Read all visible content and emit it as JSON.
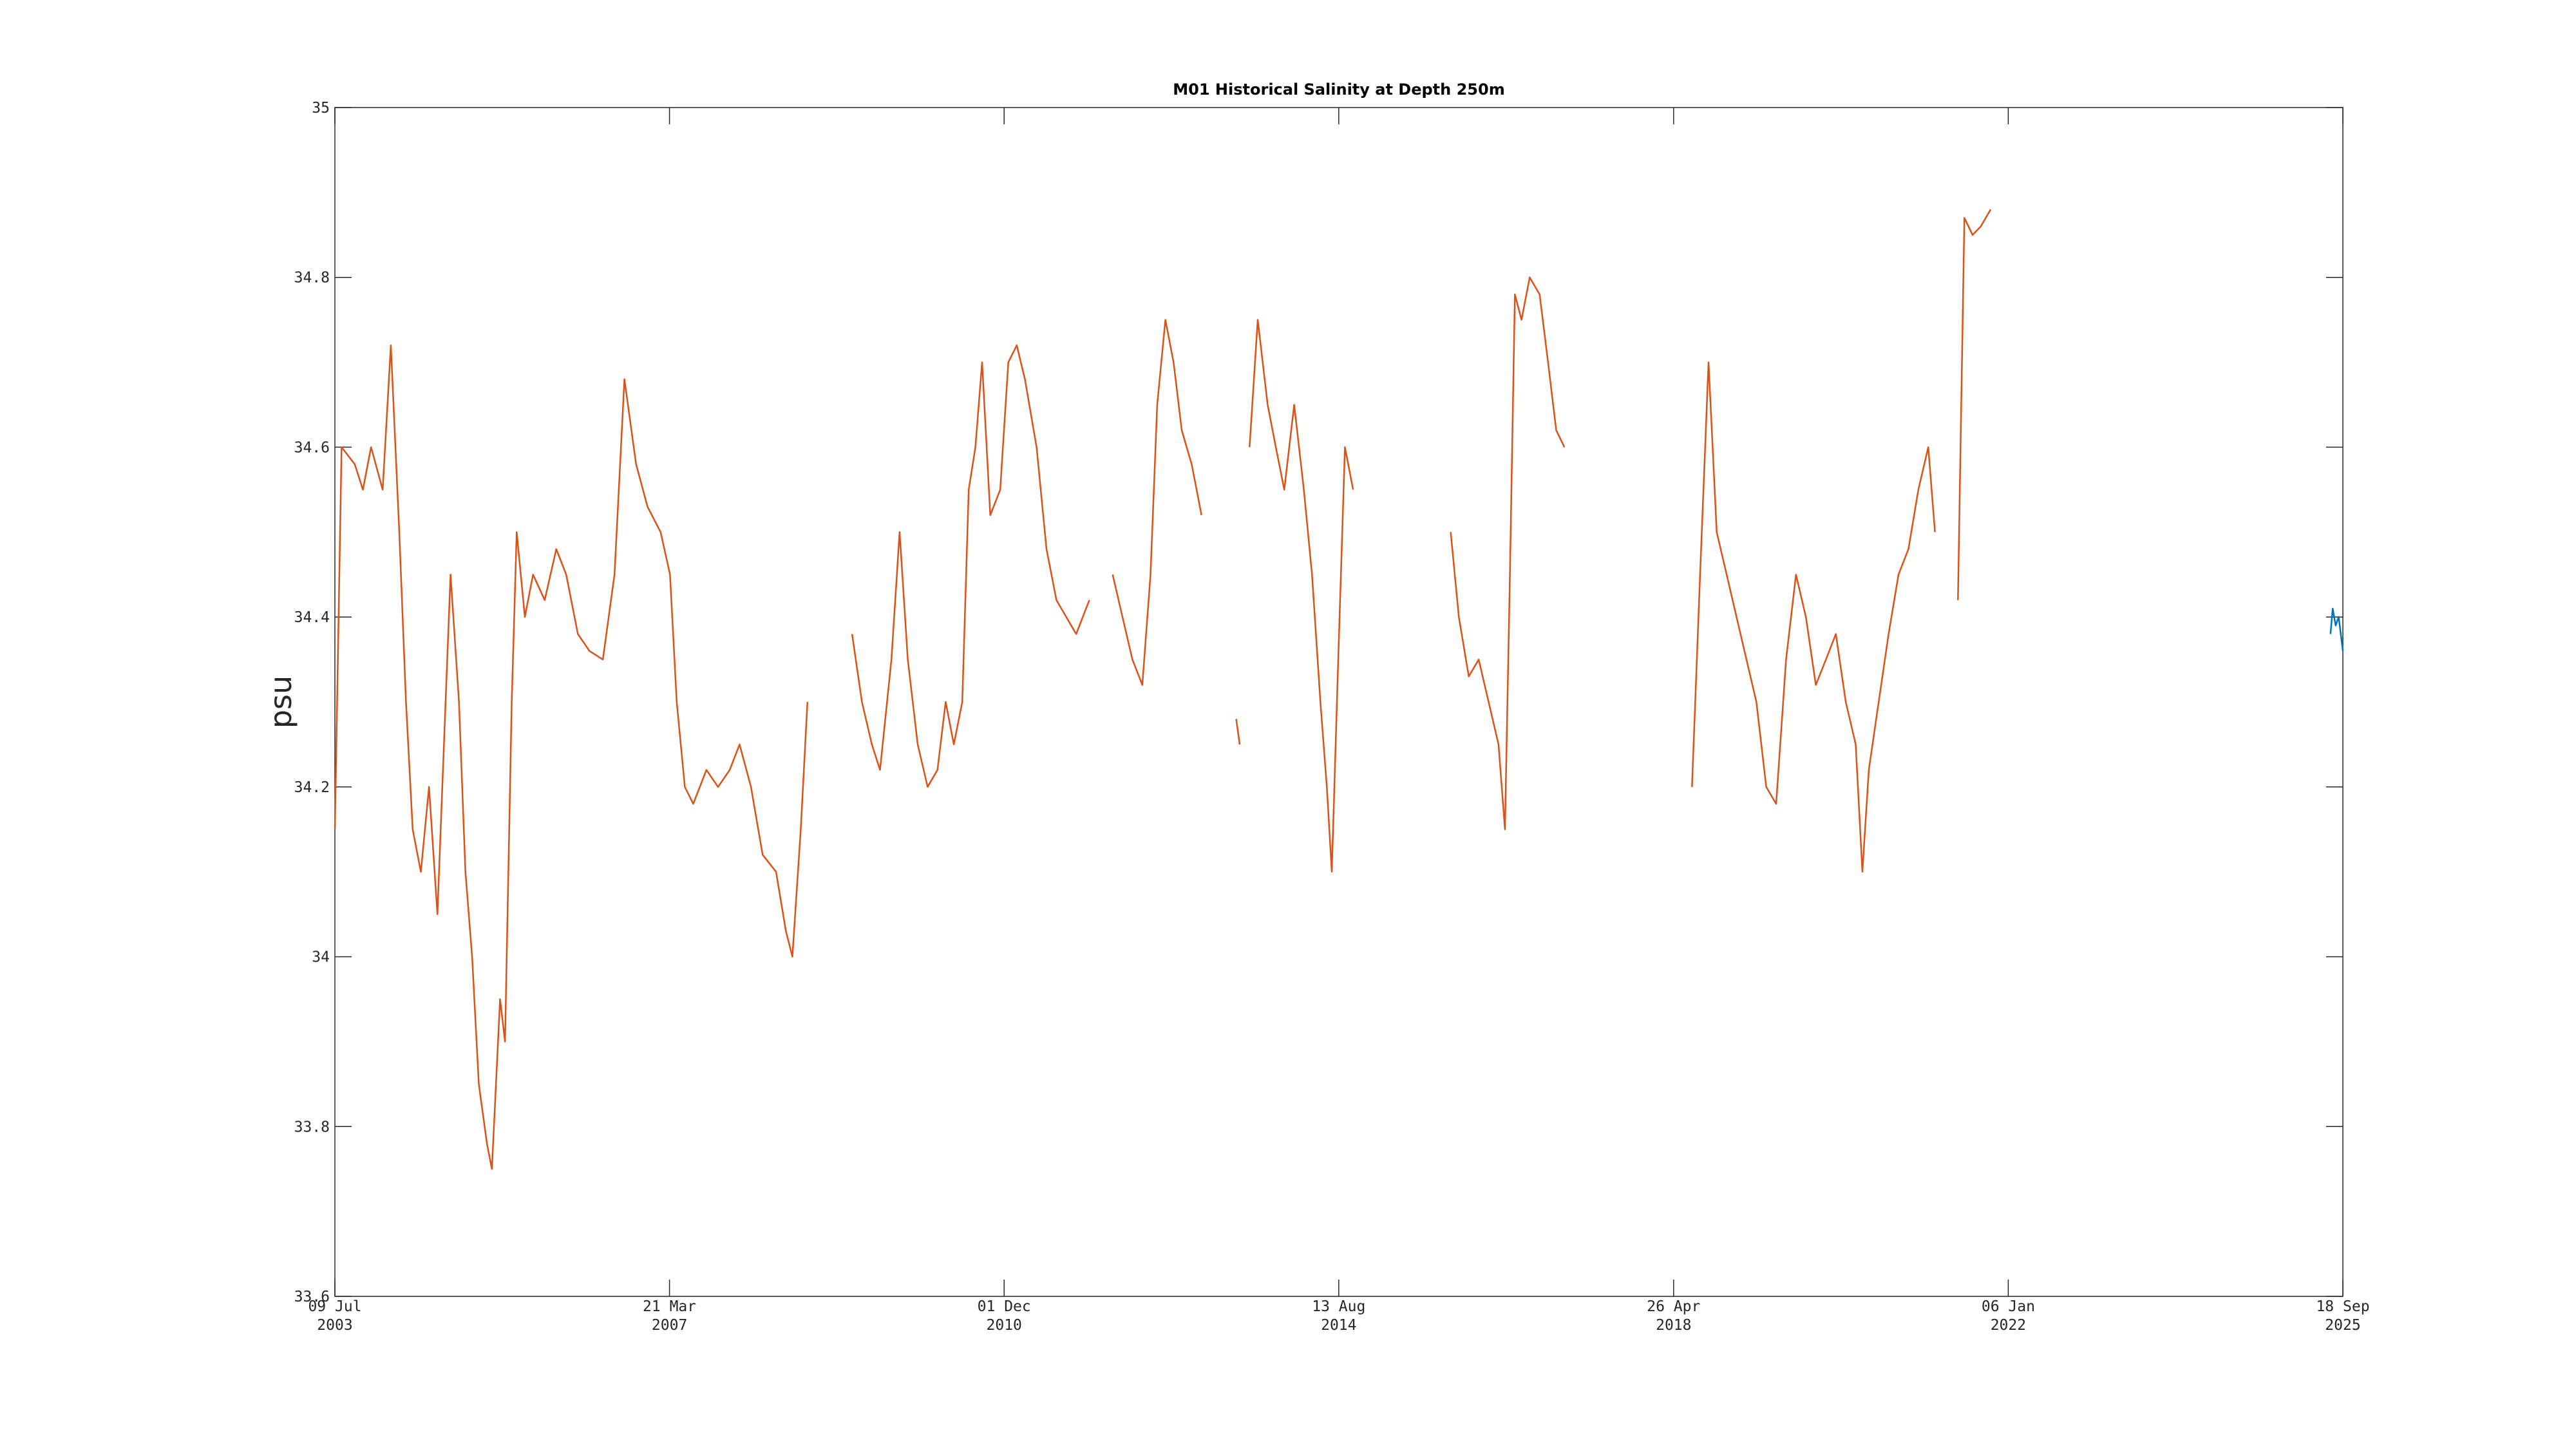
{
  "chart_data": {
    "type": "line",
    "title": "M01 Historical Salinity at Depth 250m",
    "y_label": "psu",
    "xlim": [
      "2003-07-09",
      "2025-09-18"
    ],
    "xticks": [
      {
        "value": "2003-07-09",
        "label": [
          "09 Jul",
          "2003"
        ]
      },
      {
        "value": "2007-03-21",
        "label": [
          "21 Mar",
          "2007"
        ]
      },
      {
        "value": "2010-12-01",
        "label": [
          "01 Dec",
          "2010"
        ]
      },
      {
        "value": "2014-08-13",
        "label": [
          "13 Aug",
          "2014"
        ]
      },
      {
        "value": "2018-04-26",
        "label": [
          "26 Apr",
          "2018"
        ]
      },
      {
        "value": "2022-01-06",
        "label": [
          "06 Jan",
          "2022"
        ]
      },
      {
        "value": "2025-09-18",
        "label": [
          "18 Sep",
          "2025"
        ]
      }
    ],
    "ylim": [
      33.6,
      35
    ],
    "yticks": [
      33.6,
      33.8,
      34,
      34.2,
      34.4,
      34.6,
      34.8,
      35
    ],
    "grid": false,
    "series": [
      {
        "color": "#d95319",
        "x": [
          "2003-07-09",
          "2003-08-05",
          "2003-09-27",
          "2003-10-30",
          "2003-12-02",
          "2004-01-18",
          "2004-02-20",
          "2004-03-25",
          "2004-04-21",
          "2004-05-18",
          "2004-06-20",
          "2004-07-23",
          "2004-08-26",
          "2004-09-28",
          "2004-10-18",
          "2004-11-21",
          "2004-12-17",
          "2005-01-13",
          "2005-02-09",
          "2005-03-14",
          "2005-04-03",
          "2005-05-06",
          "2005-05-26",
          "2005-06-22",
          "2005-07-12",
          "2005-08-14",
          "2005-09-16",
          "2005-11-02",
          "2005-12-19",
          "2006-01-28",
          "2006-03-16",
          "2006-05-02",
          "2006-06-25",
          "2006-08-11",
          "2006-09-20",
          "2006-11-06",
          "2006-12-22",
          "2007-02-13",
          "2007-03-23",
          "2007-04-19",
          "2007-05-22",
          "2007-06-25",
          "2007-08-17",
          "2007-10-03",
          "2007-11-19",
          "2007-12-29",
          "2008-02-13",
          "2008-03-31",
          "2008-05-24",
          "2008-07-03",
          "2008-07-29",
          "2008-09-01",
          "2008-09-28",
          "2009-01-01",
          "2009-03-27",
          "2009-05-06",
          "2009-06-15",
          "2009-07-18",
          "2009-09-02",
          "2009-10-05",
          "2009-11-07",
          "2009-12-17",
          "2010-01-26",
          "2010-03-07",
          "2010-04-09",
          "2010-05-12",
          "2010-06-15",
          "2010-07-11",
          "2010-08-07",
          "2010-09-03",
          "2010-10-06",
          "2010-11-15",
          "2010-12-18",
          "2011-01-21",
          "2011-02-23",
          "2011-04-11",
          "2011-05-21",
          "2011-06-30",
          "2011-08-09",
          "2011-09-18",
          "2011-11-10",
          "2012-01-01",
          "2012-02-12",
          "2012-03-23",
          "2012-05-02",
          "2012-06-11",
          "2012-07-14",
          "2012-08-10",
          "2012-09-12",
          "2012-10-15",
          "2012-11-17",
          "2012-12-27",
          "2013-02-05",
          "2013-03-15",
          "2013-06-25",
          "2013-07-09",
          "2013-07-20",
          "2013-08-18",
          "2013-09-20",
          "2013-10-30",
          "2013-12-02",
          "2014-01-05",
          "2014-02-14",
          "2014-03-25",
          "2014-04-27",
          "2014-05-31",
          "2014-06-26",
          "2014-07-16",
          "2014-08-11",
          "2014-09-07",
          "2014-10-10",
          "2015-06-01",
          "2015-11-08",
          "2015-12-11",
          "2016-01-20",
          "2016-02-29",
          "2016-04-09",
          "2016-05-19",
          "2016-06-14",
          "2016-07-04",
          "2016-07-24",
          "2016-08-20",
          "2016-09-22",
          "2016-11-01",
          "2016-12-05",
          "2017-01-07",
          "2017-02-09",
          "2017-06-01",
          "2018-07-09",
          "2018-08-11",
          "2018-09-14",
          "2018-10-17",
          "2018-11-26",
          "2019-01-05",
          "2019-02-14",
          "2019-03-26",
          "2019-05-05",
          "2019-06-14",
          "2019-07-24",
          "2019-09-02",
          "2019-10-12",
          "2019-11-21",
          "2020-01-01",
          "2020-02-10",
          "2020-03-21",
          "2020-04-30",
          "2020-05-27",
          "2020-06-22",
          "2020-08-01",
          "2020-09-10",
          "2020-10-20",
          "2020-11-29",
          "2021-01-08",
          "2021-02-17",
          "2021-03-16",
          "2021-04-15",
          "2021-06-17",
          "2021-07-13",
          "2021-08-15",
          "2021-09-17",
          "2021-10-27"
        ],
        "values": [
          34.15,
          34.6,
          34.58,
          34.55,
          34.6,
          34.55,
          34.72,
          34.5,
          34.3,
          34.15,
          34.1,
          34.2,
          34.05,
          34.3,
          34.45,
          34.3,
          34.1,
          34.0,
          33.85,
          33.78,
          33.75,
          33.95,
          33.9,
          34.3,
          34.5,
          34.4,
          34.45,
          34.42,
          34.48,
          34.45,
          34.38,
          34.36,
          34.35,
          34.45,
          34.68,
          34.58,
          34.53,
          34.5,
          34.45,
          34.3,
          34.2,
          34.18,
          34.22,
          34.2,
          34.22,
          34.25,
          34.2,
          34.12,
          34.1,
          34.03,
          34.0,
          34.15,
          34.3,
          null,
          34.38,
          34.3,
          34.25,
          34.22,
          34.35,
          34.5,
          34.35,
          34.25,
          34.2,
          34.22,
          34.3,
          34.25,
          34.3,
          34.55,
          34.6,
          34.7,
          34.52,
          34.55,
          34.7,
          34.72,
          34.68,
          34.6,
          34.48,
          34.42,
          34.4,
          34.38,
          34.42,
          null,
          34.45,
          34.4,
          34.35,
          34.32,
          34.45,
          34.65,
          34.75,
          34.7,
          34.62,
          34.58,
          34.52,
          null,
          34.28,
          34.25,
          null,
          34.6,
          34.75,
          34.65,
          34.6,
          34.55,
          34.65,
          34.55,
          34.45,
          34.3,
          34.2,
          34.1,
          34.35,
          34.6,
          34.55,
          null,
          34.5,
          34.4,
          34.33,
          34.35,
          34.3,
          34.25,
          34.15,
          34.45,
          34.78,
          34.75,
          34.8,
          34.78,
          34.7,
          34.62,
          34.6,
          null,
          34.2,
          34.45,
          34.7,
          34.5,
          34.45,
          34.4,
          34.35,
          34.3,
          34.2,
          34.18,
          34.35,
          34.45,
          34.4,
          34.32,
          34.35,
          34.38,
          34.3,
          34.25,
          34.1,
          34.22,
          34.3,
          34.38,
          34.45,
          34.48,
          34.55,
          34.6,
          34.5,
          null,
          34.42,
          34.87,
          34.85,
          34.86,
          34.88
        ]
      },
      {
        "color": "#0072bd",
        "x": [
          "2025-07-30",
          "2025-08-08",
          "2025-08-20",
          "2025-09-01",
          "2025-09-18"
        ],
        "values": [
          34.38,
          34.41,
          34.39,
          34.4,
          34.36
        ]
      }
    ]
  }
}
